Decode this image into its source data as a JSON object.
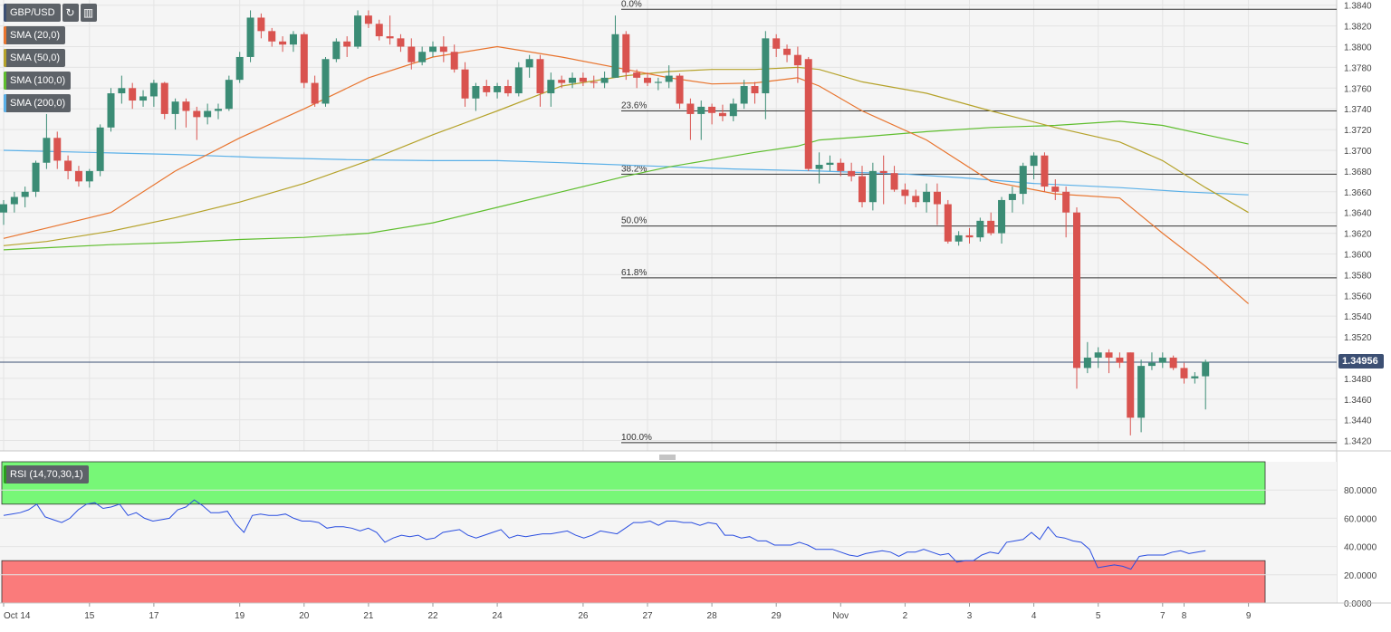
{
  "instrument": {
    "symbol": "GBP/USD"
  },
  "toolbar": {
    "refresh_icon": "refresh-icon",
    "settings_icon": "bar-settings-icon"
  },
  "indicators": [
    {
      "label": "SMA (20,0)",
      "color": "#e8742e"
    },
    {
      "label": "SMA (50,0)",
      "color": "#b5a22a"
    },
    {
      "label": "SMA (100,0)",
      "color": "#5fbe2e"
    },
    {
      "label": "SMA (200,0)",
      "color": "#5ab0e8"
    }
  ],
  "rsi": {
    "label": "RSI (14,70,30,1)",
    "overbought": 70,
    "oversold": 30,
    "ticks": [
      "0.0000",
      "20.0000",
      "40.0000",
      "60.0000",
      "80.0000"
    ]
  },
  "current_price": "1.34956",
  "chart_data": {
    "type": "candlestick",
    "ylim": [
      1.341,
      1.3845
    ],
    "y_ticks": [
      "1.3420",
      "1.3440",
      "1.3460",
      "1.3480",
      "1.3500",
      "1.3520",
      "1.3540",
      "1.3560",
      "1.3580",
      "1.3600",
      "1.3620",
      "1.3640",
      "1.3660",
      "1.3680",
      "1.3700",
      "1.3720",
      "1.3740",
      "1.3760",
      "1.3780",
      "1.3800",
      "1.3820",
      "1.3840"
    ],
    "x_ticks": [
      {
        "label": "Oct 14",
        "bar": 0
      },
      {
        "label": "15",
        "bar": 8
      },
      {
        "label": "17",
        "bar": 14
      },
      {
        "label": "19",
        "bar": 22
      },
      {
        "label": "20",
        "bar": 28
      },
      {
        "label": "21",
        "bar": 34
      },
      {
        "label": "22",
        "bar": 40
      },
      {
        "label": "24",
        "bar": 46
      },
      {
        "label": "26",
        "bar": 54
      },
      {
        "label": "27",
        "bar": 60
      },
      {
        "label": "28",
        "bar": 66
      },
      {
        "label": "29",
        "bar": 72
      },
      {
        "label": "Nov",
        "bar": 78
      },
      {
        "label": "2",
        "bar": 84
      },
      {
        "label": "3",
        "bar": 90
      },
      {
        "label": "4",
        "bar": 96
      },
      {
        "label": "5",
        "bar": 102
      },
      {
        "label": "7",
        "bar": 108
      },
      {
        "label": "8",
        "bar": 110
      },
      {
        "label": "9",
        "bar": 116
      }
    ],
    "fibonacci": [
      {
        "label": "0.0%",
        "price": 1.3836
      },
      {
        "label": "23.6%",
        "price": 1.3738
      },
      {
        "label": "38.2%",
        "price": 1.3677
      },
      {
        "label": "50.0%",
        "price": 1.3627
      },
      {
        "label": "61.8%",
        "price": 1.3577
      },
      {
        "label": "100.0%",
        "price": 1.3418
      }
    ],
    "candles": [
      [
        1.364,
        1.3652,
        1.3628,
        1.3648
      ],
      [
        1.3648,
        1.366,
        1.364,
        1.3655
      ],
      [
        1.3655,
        1.3665,
        1.3645,
        1.366
      ],
      [
        1.366,
        1.369,
        1.3655,
        1.3688
      ],
      [
        1.3688,
        1.3735,
        1.3682,
        1.3712
      ],
      [
        1.3712,
        1.3718,
        1.3682,
        1.369
      ],
      [
        1.369,
        1.3695,
        1.3672,
        1.368
      ],
      [
        1.368,
        1.3685,
        1.3665,
        1.367
      ],
      [
        1.367,
        1.3682,
        1.3664,
        1.368
      ],
      [
        1.368,
        1.3725,
        1.3675,
        1.3722
      ],
      [
        1.3722,
        1.376,
        1.3718,
        1.3755
      ],
      [
        1.3755,
        1.3772,
        1.3745,
        1.376
      ],
      [
        1.376,
        1.3765,
        1.374,
        1.3748
      ],
      [
        1.3748,
        1.3758,
        1.3742,
        1.3752
      ],
      [
        1.3752,
        1.3768,
        1.3742,
        1.3765
      ],
      [
        1.3765,
        1.3766,
        1.373,
        1.3735
      ],
      [
        1.3735,
        1.375,
        1.372,
        1.3747
      ],
      [
        1.3747,
        1.375,
        1.3722,
        1.3738
      ],
      [
        1.3738,
        1.3742,
        1.371,
        1.3732
      ],
      [
        1.3732,
        1.3745,
        1.3725,
        1.3738
      ],
      [
        1.3738,
        1.3745,
        1.373,
        1.374
      ],
      [
        1.374,
        1.3772,
        1.3738,
        1.3768
      ],
      [
        1.3768,
        1.3795,
        1.3765,
        1.379
      ],
      [
        1.379,
        1.3835,
        1.3785,
        1.3828
      ],
      [
        1.3828,
        1.3832,
        1.3808,
        1.3815
      ],
      [
        1.3815,
        1.3818,
        1.38,
        1.3805
      ],
      [
        1.3805,
        1.381,
        1.3795,
        1.3802
      ],
      [
        1.3802,
        1.3815,
        1.3795,
        1.3812
      ],
      [
        1.3812,
        1.3814,
        1.376,
        1.3765
      ],
      [
        1.3765,
        1.3772,
        1.3742,
        1.3745
      ],
      [
        1.3745,
        1.379,
        1.3742,
        1.3788
      ],
      [
        1.3788,
        1.3808,
        1.3785,
        1.3805
      ],
      [
        1.3805,
        1.381,
        1.379,
        1.38
      ],
      [
        1.38,
        1.3835,
        1.3798,
        1.383
      ],
      [
        1.383,
        1.3835,
        1.3818,
        1.3822
      ],
      [
        1.3822,
        1.3826,
        1.3806,
        1.381
      ],
      [
        1.381,
        1.383,
        1.3802,
        1.3808
      ],
      [
        1.3808,
        1.3812,
        1.3795,
        1.38
      ],
      [
        1.38,
        1.3808,
        1.3778,
        1.3785
      ],
      [
        1.3785,
        1.38,
        1.3782,
        1.3795
      ],
      [
        1.3795,
        1.3805,
        1.379,
        1.38
      ],
      [
        1.38,
        1.381,
        1.3785,
        1.3795
      ],
      [
        1.3795,
        1.3802,
        1.3775,
        1.3778
      ],
      [
        1.3778,
        1.3785,
        1.3742,
        1.375
      ],
      [
        1.375,
        1.3765,
        1.3738,
        1.3762
      ],
      [
        1.3762,
        1.3768,
        1.3752,
        1.3756
      ],
      [
        1.3756,
        1.3765,
        1.375,
        1.3762
      ],
      [
        1.3762,
        1.3768,
        1.3752,
        1.3755
      ],
      [
        1.3755,
        1.3785,
        1.3752,
        1.378
      ],
      [
        1.378,
        1.3792,
        1.377,
        1.3788
      ],
      [
        1.3788,
        1.3792,
        1.3742,
        1.3755
      ],
      [
        1.3755,
        1.3775,
        1.3742,
        1.3768
      ],
      [
        1.3768,
        1.3772,
        1.376,
        1.3765
      ],
      [
        1.3765,
        1.3775,
        1.376,
        1.377
      ],
      [
        1.377,
        1.3775,
        1.3762,
        1.3766
      ],
      [
        1.3766,
        1.3772,
        1.376,
        1.3765
      ],
      [
        1.3765,
        1.3776,
        1.376,
        1.377
      ],
      [
        1.377,
        1.383,
        1.377,
        1.3812
      ],
      [
        1.3812,
        1.3815,
        1.3768,
        1.3775
      ],
      [
        1.3775,
        1.3778,
        1.376,
        1.377
      ],
      [
        1.377,
        1.3775,
        1.3762,
        1.3765
      ],
      [
        1.3765,
        1.377,
        1.3758,
        1.3766
      ],
      [
        1.3766,
        1.3782,
        1.376,
        1.3772
      ],
      [
        1.3772,
        1.3774,
        1.374,
        1.3745
      ],
      [
        1.3745,
        1.375,
        1.371,
        1.3735
      ],
      [
        1.3735,
        1.3748,
        1.371,
        1.3742
      ],
      [
        1.3742,
        1.3745,
        1.3725,
        1.3736
      ],
      [
        1.3736,
        1.3744,
        1.3728,
        1.3733
      ],
      [
        1.3733,
        1.375,
        1.3728,
        1.3745
      ],
      [
        1.3745,
        1.3768,
        1.374,
        1.3762
      ],
      [
        1.3762,
        1.3766,
        1.3745,
        1.3755
      ],
      [
        1.3755,
        1.3815,
        1.373,
        1.3808
      ],
      [
        1.3808,
        1.3812,
        1.379,
        1.3798
      ],
      [
        1.3798,
        1.3802,
        1.3785,
        1.3792
      ],
      [
        1.3792,
        1.38,
        1.3765,
        1.3782
      ],
      [
        1.3788,
        1.379,
        1.368,
        1.3682
      ],
      [
        1.3682,
        1.3698,
        1.3668,
        1.3686
      ],
      [
        1.3686,
        1.3695,
        1.368,
        1.3688
      ],
      [
        1.3688,
        1.3692,
        1.3675,
        1.368
      ],
      [
        1.368,
        1.3688,
        1.367,
        1.3675
      ],
      [
        1.3675,
        1.3685,
        1.3645,
        1.365
      ],
      [
        1.365,
        1.3688,
        1.3642,
        1.368
      ],
      [
        1.368,
        1.3695,
        1.3648,
        1.3678
      ],
      [
        1.3678,
        1.3685,
        1.366,
        1.3662
      ],
      [
        1.3662,
        1.3668,
        1.3648,
        1.3656
      ],
      [
        1.3656,
        1.3662,
        1.3645,
        1.365
      ],
      [
        1.365,
        1.3668,
        1.364,
        1.366
      ],
      [
        1.366,
        1.3668,
        1.3628,
        1.3648
      ],
      [
        1.3648,
        1.3652,
        1.361,
        1.3612
      ],
      [
        1.3612,
        1.3622,
        1.3608,
        1.3618
      ],
      [
        1.3618,
        1.3625,
        1.361,
        1.3616
      ],
      [
        1.3616,
        1.3635,
        1.3612,
        1.3632
      ],
      [
        1.3632,
        1.364,
        1.3618,
        1.362
      ],
      [
        1.362,
        1.3655,
        1.361,
        1.3652
      ],
      [
        1.3652,
        1.3665,
        1.364,
        1.3658
      ],
      [
        1.3658,
        1.3688,
        1.3648,
        1.3685
      ],
      [
        1.3685,
        1.3698,
        1.3672,
        1.3695
      ],
      [
        1.3695,
        1.3698,
        1.366,
        1.3665
      ],
      [
        1.3665,
        1.3672,
        1.3652,
        1.366
      ],
      [
        1.366,
        1.3665,
        1.3616,
        1.364
      ],
      [
        1.364,
        1.3645,
        1.347,
        1.349
      ],
      [
        1.349,
        1.3515,
        1.3485,
        1.35
      ],
      [
        1.35,
        1.351,
        1.349,
        1.3505
      ],
      [
        1.3505,
        1.3508,
        1.3485,
        1.35
      ],
      [
        1.35,
        1.3505,
        1.349,
        1.3495
      ],
      [
        1.3505,
        1.3505,
        1.3425,
        1.3442
      ],
      [
        1.3442,
        1.3498,
        1.3428,
        1.3492
      ],
      [
        1.3492,
        1.3505,
        1.3488,
        1.3495
      ],
      [
        1.3495,
        1.3505,
        1.349,
        1.35
      ],
      [
        1.35,
        1.3502,
        1.3488,
        1.349
      ],
      [
        1.349,
        1.3495,
        1.3475,
        1.348
      ],
      [
        1.348,
        1.3486,
        1.3475,
        1.3482
      ],
      [
        1.3482,
        1.3498,
        1.345,
        1.3496
      ]
    ],
    "sma20": [
      [
        0,
        1.3615
      ],
      [
        4,
        1.3625
      ],
      [
        10,
        1.364
      ],
      [
        16,
        1.368
      ],
      [
        22,
        1.3712
      ],
      [
        28,
        1.374
      ],
      [
        34,
        1.377
      ],
      [
        40,
        1.379
      ],
      [
        46,
        1.38
      ],
      [
        52,
        1.379
      ],
      [
        58,
        1.3778
      ],
      [
        62,
        1.377
      ],
      [
        66,
        1.3764
      ],
      [
        70,
        1.3765
      ],
      [
        74,
        1.377
      ],
      [
        76,
        1.3762
      ],
      [
        80,
        1.3738
      ],
      [
        86,
        1.371
      ],
      [
        92,
        1.367
      ],
      [
        98,
        1.3658
      ],
      [
        104,
        1.3654
      ],
      [
        108,
        1.362
      ],
      [
        112,
        1.3588
      ],
      [
        116,
        1.3552
      ]
    ],
    "sma50": [
      [
        0,
        1.3608
      ],
      [
        4,
        1.3612
      ],
      [
        10,
        1.3622
      ],
      [
        16,
        1.3635
      ],
      [
        22,
        1.365
      ],
      [
        28,
        1.3668
      ],
      [
        34,
        1.369
      ],
      [
        40,
        1.3715
      ],
      [
        46,
        1.3738
      ],
      [
        52,
        1.3762
      ],
      [
        58,
        1.3772
      ],
      [
        62,
        1.3776
      ],
      [
        66,
        1.3778
      ],
      [
        70,
        1.3778
      ],
      [
        74,
        1.378
      ],
      [
        76,
        1.3778
      ],
      [
        80,
        1.3766
      ],
      [
        86,
        1.3755
      ],
      [
        92,
        1.3738
      ],
      [
        98,
        1.3722
      ],
      [
        104,
        1.3708
      ],
      [
        108,
        1.369
      ],
      [
        112,
        1.3664
      ],
      [
        116,
        1.364
      ]
    ],
    "sma100": [
      [
        0,
        1.3604
      ],
      [
        4,
        1.3606
      ],
      [
        10,
        1.3609
      ],
      [
        16,
        1.3611
      ],
      [
        22,
        1.3614
      ],
      [
        28,
        1.3616
      ],
      [
        34,
        1.362
      ],
      [
        40,
        1.363
      ],
      [
        46,
        1.3645
      ],
      [
        52,
        1.366
      ],
      [
        58,
        1.3675
      ],
      [
        62,
        1.3684
      ],
      [
        66,
        1.3691
      ],
      [
        70,
        1.3698
      ],
      [
        74,
        1.3704
      ],
      [
        76,
        1.371
      ],
      [
        80,
        1.3713
      ],
      [
        86,
        1.3718
      ],
      [
        92,
        1.3722
      ],
      [
        98,
        1.3724
      ],
      [
        104,
        1.3728
      ],
      [
        108,
        1.3724
      ],
      [
        112,
        1.3715
      ],
      [
        116,
        1.3706
      ]
    ],
    "sma200": [
      [
        0,
        1.37
      ],
      [
        8,
        1.3698
      ],
      [
        16,
        1.3696
      ],
      [
        24,
        1.3693
      ],
      [
        32,
        1.3691
      ],
      [
        40,
        1.369
      ],
      [
        46,
        1.369
      ],
      [
        52,
        1.3688
      ],
      [
        60,
        1.3685
      ],
      [
        68,
        1.3682
      ],
      [
        76,
        1.368
      ],
      [
        84,
        1.3677
      ],
      [
        90,
        1.3673
      ],
      [
        96,
        1.3668
      ],
      [
        104,
        1.3664
      ],
      [
        110,
        1.366
      ],
      [
        116,
        1.3657
      ]
    ],
    "rsi_values": [
      62,
      63,
      64,
      66,
      70,
      61,
      59,
      57,
      60,
      66,
      70,
      71,
      67,
      68,
      70,
      62,
      64,
      60,
      58,
      59,
      60,
      66,
      68,
      73,
      69,
      64,
      64,
      65,
      56,
      50,
      62,
      63,
      62,
      62,
      63,
      60,
      58,
      58,
      57,
      53,
      54,
      54,
      53,
      51,
      53,
      50,
      43,
      46,
      48,
      47,
      48,
      45,
      46,
      50,
      51,
      52,
      48,
      46,
      48,
      50,
      52,
      46,
      48,
      47,
      48,
      49,
      49,
      50,
      51,
      48,
      46,
      48,
      51,
      50,
      49,
      53,
      57,
      57,
      58,
      55,
      58,
      58,
      57,
      57,
      55,
      57,
      56,
      48,
      48,
      46,
      47,
      44,
      44,
      41,
      41,
      41,
      43,
      41,
      38,
      38,
      38,
      36,
      34,
      33,
      35,
      36,
      37,
      36,
      33,
      36,
      36,
      38,
      36,
      34,
      35,
      29,
      30,
      30,
      34,
      36,
      35,
      43,
      44,
      45,
      50,
      45,
      54,
      47,
      46,
      44,
      43,
      38,
      25,
      26,
      27,
      26,
      24,
      33,
      34,
      34,
      34,
      36,
      37,
      35,
      36,
      37
    ],
    "rsi_ylim": [
      0,
      100
    ]
  }
}
